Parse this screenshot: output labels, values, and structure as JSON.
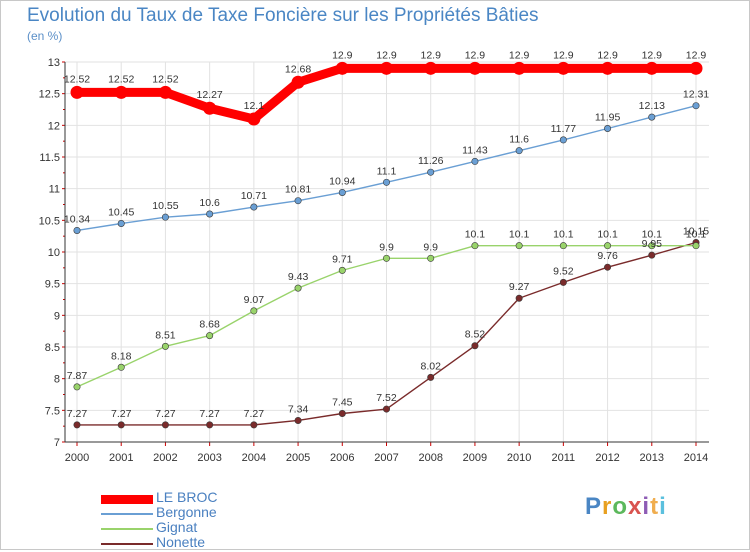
{
  "header": {
    "title": "Evolution du Taux de Taxe Foncière sur les Propriétés Bâties",
    "unit": "(en %)"
  },
  "logo": {
    "text": "Proxiti",
    "colors": [
      "#4a86c4",
      "#e8a020",
      "#5cb85c",
      "#d9534f",
      "#8e5cb5",
      "#f0ad4e",
      "#5bc0de"
    ]
  },
  "chart_data": {
    "type": "line",
    "title": "Evolution du Taux de Taxe Foncière sur les Propriétés Bâties",
    "ylabel": "(en %)",
    "xlabel": "",
    "x": [
      "2000",
      "2001",
      "2002",
      "2003",
      "2004",
      "2005",
      "2006",
      "2007",
      "2008",
      "2009",
      "2010",
      "2011",
      "2012",
      "2013",
      "2014"
    ],
    "ylim": [
      7,
      13
    ],
    "yticks": [
      "7",
      "7.5",
      "8",
      "8.5",
      "9",
      "9.5",
      "10",
      "10.5",
      "11",
      "11.5",
      "12",
      "12.5",
      "13"
    ],
    "grid": true,
    "legend": "bottom-left",
    "series": [
      {
        "name": "LE BROC",
        "color": "#ff0000",
        "values": [
          12.52,
          12.52,
          12.52,
          12.27,
          12.1,
          12.68,
          12.9,
          12.9,
          12.9,
          12.9,
          12.9,
          12.9,
          12.9,
          12.9,
          12.9
        ],
        "labels": [
          "12.52",
          "12.52",
          "12.52",
          "12.27",
          "12.1",
          "12.68",
          "12.9",
          "12.9",
          "12.9",
          "12.9",
          "12.9",
          "12.9",
          "12.9",
          "12.9",
          "12.9"
        ]
      },
      {
        "name": "Bergonne",
        "color": "#6a9fd4",
        "values": [
          10.34,
          10.45,
          10.55,
          10.6,
          10.71,
          10.81,
          10.94,
          11.1,
          11.26,
          11.43,
          11.6,
          11.77,
          11.95,
          12.13,
          12.31
        ],
        "labels": [
          "10.34",
          "10.45",
          "10.55",
          "10.6",
          "10.71",
          "10.81",
          "10.94",
          "11.1",
          "11.26",
          "11.43",
          "11.6",
          "11.77",
          "11.95",
          "12.13",
          "12.31"
        ]
      },
      {
        "name": "Gignat",
        "color": "#99d36b",
        "values": [
          7.87,
          8.18,
          8.51,
          8.68,
          9.07,
          9.43,
          9.71,
          9.9,
          9.9,
          10.1,
          10.1,
          10.1,
          10.1,
          10.1,
          10.1
        ],
        "labels": [
          "7.87",
          "8.18",
          "8.51",
          "8.68",
          "9.07",
          "9.43",
          "9.71",
          "9.9",
          "9.9",
          "10.1",
          "10.1",
          "10.1",
          "10.1",
          "10.1",
          "10.1"
        ]
      },
      {
        "name": "Nonette",
        "color": "#7a2b2b",
        "values": [
          7.27,
          7.27,
          7.27,
          7.27,
          7.27,
          7.34,
          7.45,
          7.52,
          8.02,
          8.52,
          9.27,
          9.52,
          9.76,
          9.95,
          10.15
        ],
        "labels": [
          "7.27",
          "7.27",
          "7.27",
          "7.27",
          "7.27",
          "7.34",
          "7.45",
          "7.52",
          "8.02",
          "8.52",
          "9.27",
          "9.52",
          "9.76",
          "9.95",
          "10.15"
        ]
      }
    ]
  }
}
